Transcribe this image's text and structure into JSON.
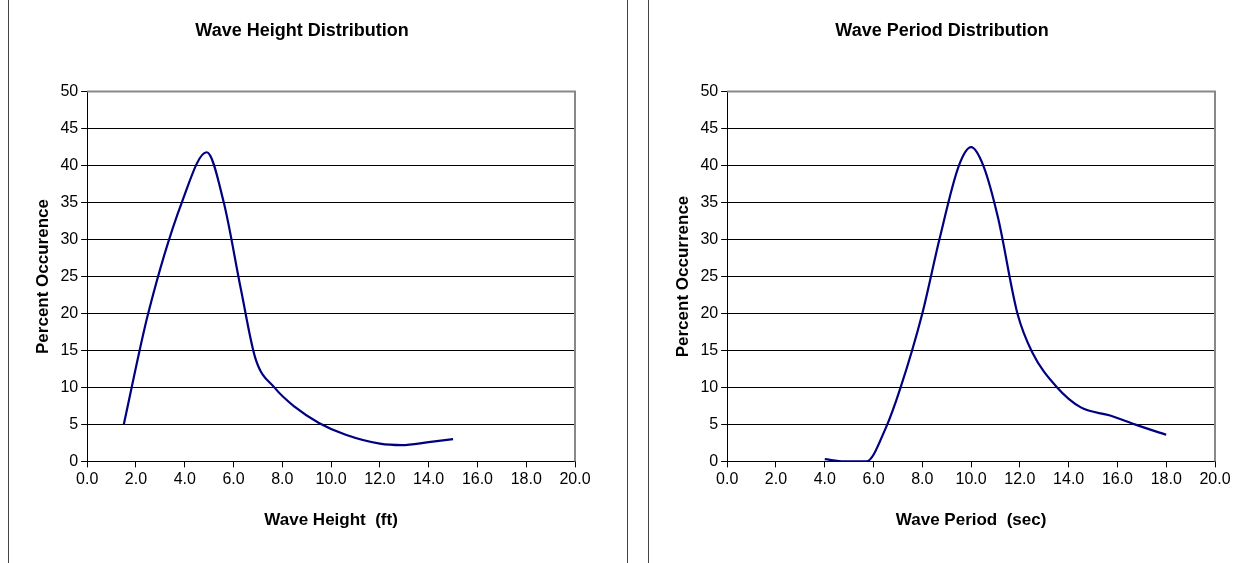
{
  "chart_data": [
    {
      "type": "line",
      "title": "Wave Height Distribution",
      "xlabel": "Wave Height  (ft)",
      "ylabel": "Percent Occurence",
      "series": [
        {
          "color": "#000080",
          "x": [
            1.5,
            2.5,
            3.9,
            4.9,
            5.6,
            6.3,
            6.9,
            7.7,
            8.5,
            9.5,
            10.6,
            12.0,
            12.9,
            14.0,
            15.0
          ],
          "values": [
            5.0,
            20.0,
            35.2,
            41.8,
            35.0,
            23.3,
            13.9,
            9.9,
            7.4,
            5.2,
            3.6,
            2.4,
            2.2,
            2.6,
            3.0
          ]
        }
      ],
      "xlim": [
        0,
        20
      ],
      "xticks": [
        {
          "value": 0,
          "label": "0.0"
        },
        {
          "value": 2,
          "label": "2.0"
        },
        {
          "value": 4,
          "label": "4.0"
        },
        {
          "value": 6,
          "label": "6.0"
        },
        {
          "value": 8,
          "label": "8.0"
        },
        {
          "value": 10,
          "label": "10.0"
        },
        {
          "value": 12,
          "label": "12.0"
        },
        {
          "value": 14,
          "label": "14.0"
        },
        {
          "value": 16,
          "label": "16.0"
        },
        {
          "value": 18,
          "label": "18.0"
        },
        {
          "value": 20,
          "label": "20.0"
        }
      ],
      "ylim": [
        0,
        50
      ],
      "yticks": [
        0,
        5,
        10,
        15,
        20,
        25,
        30,
        35,
        40,
        45,
        50
      ],
      "grid": "y",
      "legend": false,
      "marker": "none",
      "line_style": "solid"
    },
    {
      "type": "line",
      "title": "Wave Period Distribution",
      "xlabel": "Wave Period  (sec)",
      "ylabel": "Percent Occurrence",
      "series": [
        {
          "color": "#000080",
          "x": [
            4.0,
            4.8,
            5.7,
            6.5,
            7.1,
            8.0,
            8.7,
            9.5,
            10.0,
            10.5,
            11.1,
            11.9,
            12.5,
            13.5,
            14.5,
            15.7,
            16.8,
            18.0
          ],
          "values": [
            0.3,
            0,
            0,
            4.5,
            9.9,
            20.0,
            30.0,
            40.0,
            42.5,
            40.0,
            33.0,
            20.0,
            14.8,
            10.1,
            7.3,
            6.2,
            4.9,
            3.6
          ]
        }
      ],
      "xlim": [
        0,
        20
      ],
      "xticks": [
        {
          "value": 0,
          "label": "0.0"
        },
        {
          "value": 2,
          "label": "2.0"
        },
        {
          "value": 4,
          "label": "4.0"
        },
        {
          "value": 6,
          "label": "6.0"
        },
        {
          "value": 8,
          "label": "8.0"
        },
        {
          "value": 10,
          "label": "10.0"
        },
        {
          "value": 12,
          "label": "12.0"
        },
        {
          "value": 14,
          "label": "14.0"
        },
        {
          "value": 16,
          "label": "16.0"
        },
        {
          "value": 18,
          "label": "18.0"
        },
        {
          "value": 20,
          "label": "20.0"
        }
      ],
      "ylim": [
        0,
        50
      ],
      "yticks": [
        0,
        5,
        10,
        15,
        20,
        25,
        30,
        35,
        40,
        45,
        50
      ],
      "grid": "y",
      "legend": false,
      "marker": "none",
      "line_style": "solid"
    }
  ]
}
